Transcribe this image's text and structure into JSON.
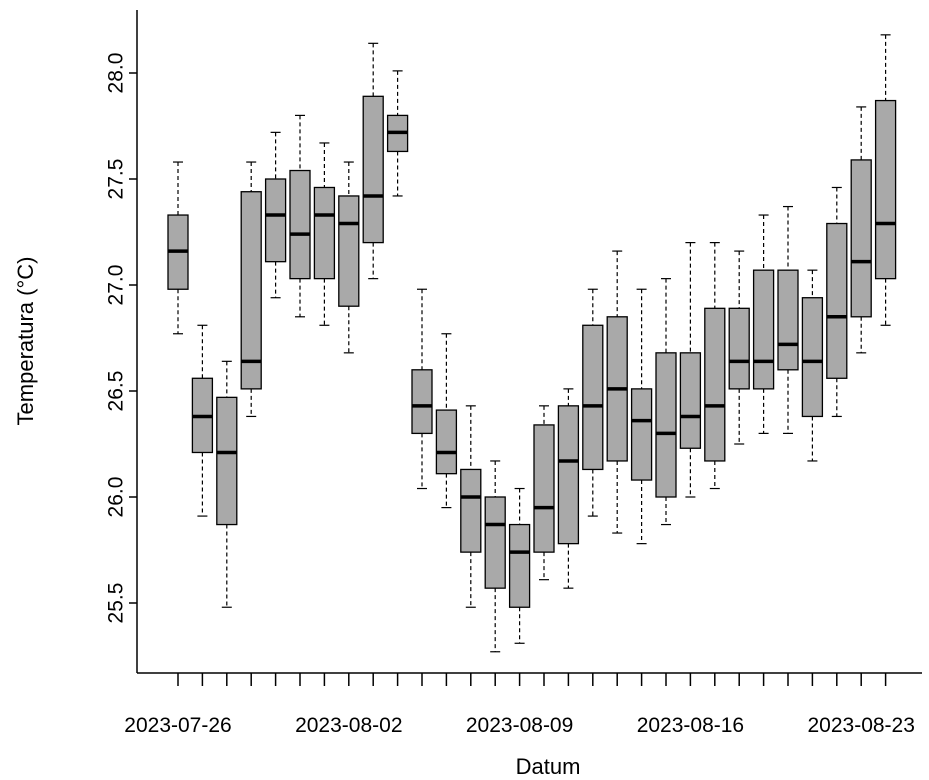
{
  "chart_data": {
    "type": "boxplot",
    "title": "",
    "xlabel": "Datum",
    "ylabel": "Temperatura (°C)",
    "ylim": [
      25.2,
      28.3
    ],
    "y_ticks": [
      "25.5",
      "26.0",
      "26.5",
      "27.0",
      "27.5",
      "28.0"
    ],
    "x_tick_labels": [
      "2023-07-26",
      "2023-08-02",
      "2023-08-09",
      "2023-08-16",
      "2023-08-23"
    ],
    "x_tick_label_dates": [
      "2023-07-26",
      "2023-08-02",
      "2023-08-09",
      "2023-08-16",
      "2023-08-23"
    ],
    "grid": false,
    "box_color": "#a9a9a9",
    "boxes": [
      {
        "date": "2023-07-26",
        "min": 26.77,
        "q1": 26.98,
        "median": 27.16,
        "q3": 27.33,
        "max": 27.58
      },
      {
        "date": "2023-07-27",
        "min": 25.91,
        "q1": 26.21,
        "median": 26.38,
        "q3": 26.56,
        "max": 26.81
      },
      {
        "date": "2023-07-28",
        "min": 25.48,
        "q1": 25.87,
        "median": 26.21,
        "q3": 26.47,
        "max": 26.64
      },
      {
        "date": "2023-07-29",
        "min": 26.38,
        "q1": 26.51,
        "median": 26.64,
        "q3": 27.44,
        "max": 27.58
      },
      {
        "date": "2023-07-30",
        "min": 26.94,
        "q1": 27.11,
        "median": 27.33,
        "q3": 27.5,
        "max": 27.72
      },
      {
        "date": "2023-07-31",
        "min": 26.85,
        "q1": 27.03,
        "median": 27.24,
        "q3": 27.54,
        "max": 27.8
      },
      {
        "date": "2023-08-01",
        "min": 26.81,
        "q1": 27.03,
        "median": 27.33,
        "q3": 27.46,
        "max": 27.67
      },
      {
        "date": "2023-08-02",
        "min": 26.68,
        "q1": 26.9,
        "median": 27.29,
        "q3": 27.42,
        "max": 27.58
      },
      {
        "date": "2023-08-03",
        "min": 27.03,
        "q1": 27.2,
        "median": 27.42,
        "q3": 27.89,
        "max": 28.14
      },
      {
        "date": "2023-08-04",
        "min": 27.42,
        "q1": 27.63,
        "median": 27.72,
        "q3": 27.8,
        "max": 28.01
      },
      {
        "date": "2023-08-05",
        "min": 26.04,
        "q1": 26.3,
        "median": 26.43,
        "q3": 26.6,
        "max": 26.98
      },
      {
        "date": "2023-08-06",
        "min": 25.95,
        "q1": 26.11,
        "median": 26.21,
        "q3": 26.41,
        "max": 26.77
      },
      {
        "date": "2023-08-07",
        "min": 25.48,
        "q1": 25.74,
        "median": 26.0,
        "q3": 26.13,
        "max": 26.43
      },
      {
        "date": "2023-08-08",
        "min": 25.27,
        "q1": 25.57,
        "median": 25.87,
        "q3": 26.0,
        "max": 26.17
      },
      {
        "date": "2023-08-09",
        "min": 25.31,
        "q1": 25.48,
        "median": 25.74,
        "q3": 25.87,
        "max": 26.04
      },
      {
        "date": "2023-08-10",
        "min": 25.61,
        "q1": 25.74,
        "median": 25.95,
        "q3": 26.34,
        "max": 26.43
      },
      {
        "date": "2023-08-11",
        "min": 25.57,
        "q1": 25.78,
        "median": 26.17,
        "q3": 26.43,
        "max": 26.51
      },
      {
        "date": "2023-08-12",
        "min": 25.91,
        "q1": 26.13,
        "median": 26.43,
        "q3": 26.81,
        "max": 26.98
      },
      {
        "date": "2023-08-13",
        "min": 25.83,
        "q1": 26.17,
        "median": 26.51,
        "q3": 26.85,
        "max": 27.16
      },
      {
        "date": "2023-08-14",
        "min": 25.78,
        "q1": 26.08,
        "median": 26.36,
        "q3": 26.51,
        "max": 26.98
      },
      {
        "date": "2023-08-15",
        "min": 25.87,
        "q1": 26.0,
        "median": 26.3,
        "q3": 26.68,
        "max": 27.03
      },
      {
        "date": "2023-08-16",
        "min": 26.0,
        "q1": 26.23,
        "median": 26.38,
        "q3": 26.68,
        "max": 27.2
      },
      {
        "date": "2023-08-17",
        "min": 26.04,
        "q1": 26.17,
        "median": 26.43,
        "q3": 26.89,
        "max": 27.2
      },
      {
        "date": "2023-08-18",
        "min": 26.25,
        "q1": 26.51,
        "median": 26.64,
        "q3": 26.89,
        "max": 27.16
      },
      {
        "date": "2023-08-19",
        "min": 26.3,
        "q1": 26.51,
        "median": 26.64,
        "q3": 27.07,
        "max": 27.33
      },
      {
        "date": "2023-08-20",
        "min": 26.3,
        "q1": 26.6,
        "median": 26.72,
        "q3": 27.07,
        "max": 27.37
      },
      {
        "date": "2023-08-21",
        "min": 26.17,
        "q1": 26.38,
        "median": 26.64,
        "q3": 26.94,
        "max": 27.07
      },
      {
        "date": "2023-08-22",
        "min": 26.38,
        "q1": 26.56,
        "median": 26.85,
        "q3": 27.29,
        "max": 27.46
      },
      {
        "date": "2023-08-23",
        "min": 26.68,
        "q1": 26.85,
        "median": 27.11,
        "q3": 27.59,
        "max": 27.84
      },
      {
        "date": "2023-08-24",
        "min": 26.81,
        "q1": 27.03,
        "median": 27.29,
        "q3": 27.87,
        "max": 28.18
      }
    ]
  }
}
